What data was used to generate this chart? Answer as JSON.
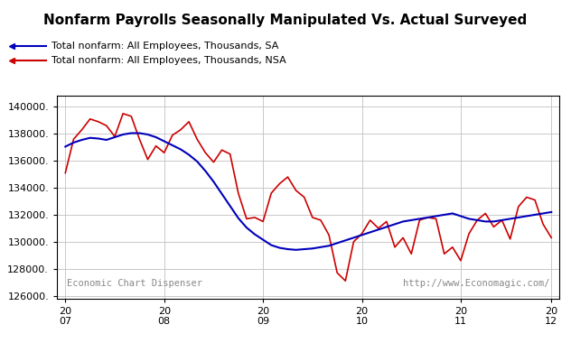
{
  "title": "Nonfarm Payrolls Seasonally Manipulated Vs. Actual Surveyed",
  "legend_sa": "Total nonfarm: All Employees, Thousands, SA",
  "legend_nsa": "Total nonfarm: All Employees, Thousands, NSA",
  "ylabel_ticks": [
    126000,
    128000,
    130000,
    132000,
    134000,
    136000,
    138000,
    140000
  ],
  "ylim": [
    125800,
    140800
  ],
  "watermark_left": "Economic Chart Dispenser",
  "watermark_right": "http://www.Economagic.com/",
  "background_color": "#ffffff",
  "grid_color": "#c0c0c0",
  "sa_color": "#0000bb",
  "nsa_color": "#cc0000",
  "sa_data": [
    137050,
    137350,
    137550,
    137700,
    137650,
    137550,
    137750,
    137950,
    138050,
    138050,
    137950,
    137750,
    137450,
    137150,
    136850,
    136450,
    135950,
    135250,
    134450,
    133550,
    132650,
    131750,
    131050,
    130550,
    130150,
    129750,
    129550,
    129450,
    129400,
    129450,
    129500,
    129600,
    129700,
    129900,
    130100,
    130300,
    130500,
    130700,
    130900,
    131100,
    131300,
    131500,
    131600,
    131700,
    131800,
    131900,
    132000,
    132100,
    131900,
    131700,
    131600,
    131500,
    131500,
    131600,
    131700,
    131800,
    131900,
    132000,
    132100,
    132200
  ],
  "nsa_data": [
    135100,
    137600,
    138300,
    139100,
    138900,
    138600,
    137800,
    139500,
    139300,
    137600,
    136100,
    137100,
    136600,
    137900,
    138300,
    138900,
    137600,
    136600,
    135900,
    136800,
    136500,
    133600,
    131700,
    131800,
    131500,
    133600,
    134300,
    134800,
    133800,
    133300,
    131800,
    131600,
    130500,
    127700,
    127100,
    130000,
    130600,
    131600,
    131000,
    131500,
    129600,
    130300,
    129100,
    131600,
    131800,
    131700,
    129100,
    129600,
    128600,
    130600,
    131600,
    132100,
    131100,
    131600,
    130200,
    132600,
    133300,
    133100,
    131300,
    130300
  ]
}
